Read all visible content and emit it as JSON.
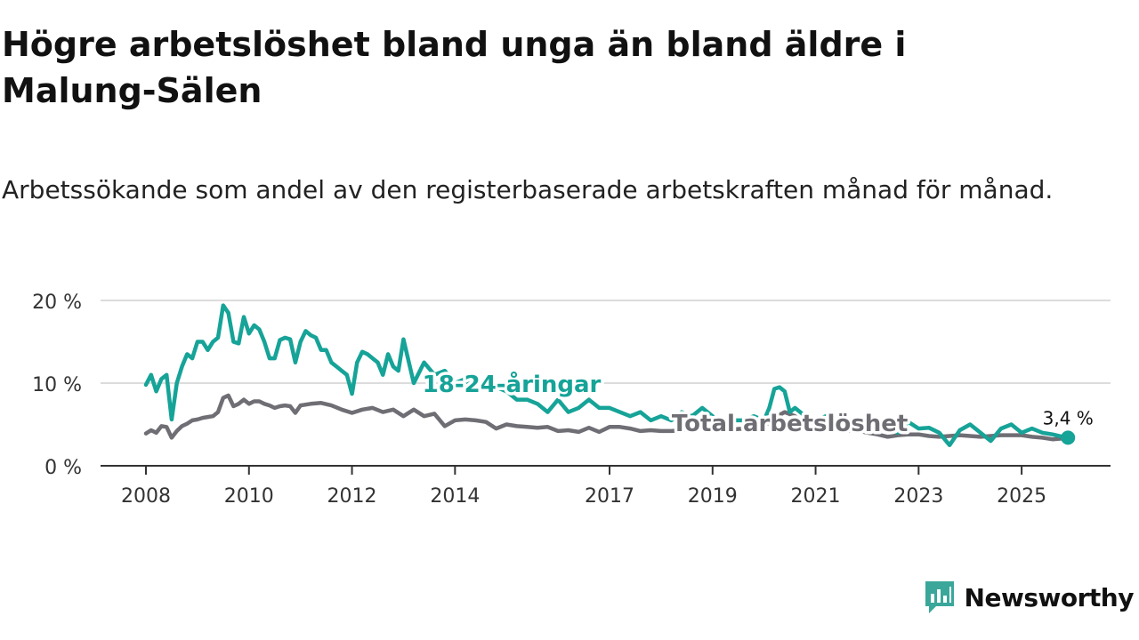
{
  "title": "Högre arbetslöshet bland unga än bland äldre i Malung-Sälen",
  "subtitle": "Arbetssökande som andel av den registerbaserade arbetskraften månad för månad.",
  "brand": {
    "name": "Newsworthy",
    "icon": "newsworthy-logo-icon"
  },
  "colors": {
    "youth": "#16a398",
    "total": "#6f6e74",
    "grid": "#dcdcdc",
    "axis": "#333333",
    "brand": "#3aa79a"
  },
  "chart_data": {
    "type": "line",
    "title": "Högre arbetslöshet bland unga än bland äldre i Malung-Sälen",
    "ylabel": "",
    "xlabel": "",
    "ylim": [
      0,
      20
    ],
    "xlim": [
      2007.6,
      2026.6
    ],
    "yticks": [
      0,
      10,
      20
    ],
    "yticklabels": [
      "0 %",
      "10 %",
      "20 %"
    ],
    "xticks": [
      2008,
      2010,
      2012,
      2014,
      2017,
      2019,
      2021,
      2023,
      2025
    ],
    "xticklabels": [
      "2008",
      "2010",
      "2012",
      "2014",
      "2017",
      "2019",
      "2021",
      "2023",
      "2025"
    ],
    "grid": true,
    "end_label": "3,4 %",
    "series": [
      {
        "name": "18-24-åringar",
        "color": "#16a398",
        "x": [
          2008.0,
          2008.1,
          2008.2,
          2008.3,
          2008.4,
          2008.5,
          2008.6,
          2008.7,
          2008.8,
          2008.9,
          2009.0,
          2009.1,
          2009.2,
          2009.3,
          2009.4,
          2009.5,
          2009.6,
          2009.7,
          2009.8,
          2009.9,
          2010.0,
          2010.1,
          2010.2,
          2010.3,
          2010.4,
          2010.5,
          2010.6,
          2010.7,
          2010.8,
          2010.9,
          2011.0,
          2011.1,
          2011.2,
          2011.3,
          2011.4,
          2011.5,
          2011.6,
          2011.7,
          2011.8,
          2011.9,
          2012.0,
          2012.1,
          2012.2,
          2012.3,
          2012.4,
          2012.5,
          2012.6,
          2012.7,
          2012.8,
          2012.9,
          2013.0,
          2013.2,
          2013.4,
          2013.6,
          2013.8,
          2014.0,
          2014.2,
          2014.4,
          2014.6,
          2014.8,
          2015.0,
          2015.2,
          2015.4,
          2015.6,
          2015.8,
          2016.0,
          2016.2,
          2016.4,
          2016.6,
          2016.8,
          2017.0,
          2017.2,
          2017.4,
          2017.6,
          2017.8,
          2018.0,
          2018.2,
          2018.4,
          2018.6,
          2018.8,
          2019.0,
          2019.2,
          2019.4,
          2019.6,
          2019.8,
          2020.0,
          2020.1,
          2020.2,
          2020.3,
          2020.4,
          2020.5,
          2020.6,
          2020.8,
          2021.0,
          2021.2,
          2021.4,
          2021.6,
          2021.8,
          2022.0,
          2022.2,
          2022.4,
          2022.6,
          2022.8,
          2023.0,
          2023.2,
          2023.4,
          2023.6,
          2023.8,
          2024.0,
          2024.2,
          2024.4,
          2024.6,
          2024.8,
          2025.0,
          2025.2,
          2025.4,
          2025.6,
          2025.8,
          2025.9
        ],
        "values": [
          9.8,
          11.0,
          9.0,
          10.5,
          11.0,
          5.6,
          10.0,
          12.0,
          13.5,
          13.0,
          15.0,
          15.0,
          14.0,
          15.0,
          15.5,
          19.4,
          18.5,
          15.0,
          14.8,
          18.0,
          16.0,
          17.0,
          16.5,
          15.0,
          13.0,
          13.0,
          15.2,
          15.5,
          15.3,
          12.5,
          15.0,
          16.3,
          15.8,
          15.5,
          14.0,
          14.0,
          12.5,
          12.0,
          11.5,
          11.0,
          8.7,
          12.5,
          13.8,
          13.5,
          13.0,
          12.5,
          11.0,
          13.5,
          12.0,
          11.5,
          15.3,
          10.0,
          12.5,
          11.0,
          11.5,
          10.0,
          10.5,
          9.0,
          10.5,
          9.5,
          9.0,
          8.0,
          8.0,
          7.5,
          6.5,
          8.0,
          6.5,
          7.0,
          8.0,
          7.0,
          7.0,
          6.5,
          6.0,
          6.5,
          5.5,
          6.0,
          5.5,
          6.5,
          6.0,
          7.0,
          6.0,
          5.0,
          5.5,
          5.5,
          6.0,
          5.5,
          7.0,
          9.3,
          9.5,
          9.0,
          6.5,
          7.0,
          6.0,
          5.5,
          6.0,
          5.0,
          5.5,
          5.0,
          5.5,
          5.0,
          4.5,
          4.0,
          5.3,
          4.5,
          4.6,
          4.0,
          2.5,
          4.3,
          5.0,
          4.0,
          3.0,
          4.5,
          5.0,
          4.0,
          4.5,
          4.0,
          3.8,
          3.5,
          3.4
        ]
      },
      {
        "name": "Total arbetslöshet",
        "color": "#6f6e74",
        "x": [
          2008.0,
          2008.1,
          2008.2,
          2008.3,
          2008.4,
          2008.5,
          2008.6,
          2008.7,
          2008.8,
          2008.9,
          2009.0,
          2009.1,
          2009.2,
          2009.3,
          2009.4,
          2009.5,
          2009.6,
          2009.7,
          2009.8,
          2009.9,
          2010.0,
          2010.1,
          2010.2,
          2010.3,
          2010.4,
          2010.5,
          2010.6,
          2010.7,
          2010.8,
          2010.9,
          2011.0,
          2011.2,
          2011.4,
          2011.6,
          2011.8,
          2012.0,
          2012.2,
          2012.4,
          2012.6,
          2012.8,
          2013.0,
          2013.2,
          2013.4,
          2013.6,
          2013.8,
          2014.0,
          2014.2,
          2014.4,
          2014.6,
          2014.8,
          2015.0,
          2015.2,
          2015.4,
          2015.6,
          2015.8,
          2016.0,
          2016.2,
          2016.4,
          2016.6,
          2016.8,
          2017.0,
          2017.2,
          2017.4,
          2017.6,
          2017.8,
          2018.0,
          2018.2,
          2018.4,
          2018.6,
          2018.8,
          2019.0,
          2019.2,
          2019.4,
          2019.6,
          2019.8,
          2020.0,
          2020.2,
          2020.4,
          2020.6,
          2020.8,
          2021.0,
          2021.2,
          2021.4,
          2021.6,
          2021.8,
          2022.0,
          2022.2,
          2022.4,
          2022.6,
          2022.8,
          2023.0,
          2023.2,
          2023.4,
          2023.6,
          2023.8,
          2024.0,
          2024.2,
          2024.4,
          2024.6,
          2024.8,
          2025.0,
          2025.2,
          2025.4,
          2025.6,
          2025.8,
          2025.9
        ],
        "values": [
          3.9,
          4.3,
          4.0,
          4.8,
          4.7,
          3.4,
          4.2,
          4.8,
          5.1,
          5.5,
          5.6,
          5.8,
          5.9,
          6.0,
          6.5,
          8.2,
          8.5,
          7.2,
          7.5,
          8.0,
          7.5,
          7.8,
          7.8,
          7.5,
          7.3,
          7.0,
          7.2,
          7.3,
          7.2,
          6.4,
          7.3,
          7.5,
          7.6,
          7.3,
          6.8,
          6.4,
          6.8,
          7.0,
          6.5,
          6.8,
          6.0,
          6.8,
          6.0,
          6.3,
          4.8,
          5.5,
          5.6,
          5.5,
          5.3,
          4.5,
          5.0,
          4.8,
          4.7,
          4.6,
          4.7,
          4.2,
          4.3,
          4.1,
          4.6,
          4.1,
          4.7,
          4.7,
          4.5,
          4.2,
          4.3,
          4.2,
          4.2,
          4.3,
          4.4,
          4.5,
          4.3,
          4.3,
          4.4,
          4.5,
          4.3,
          4.8,
          5.8,
          6.5,
          6.0,
          5.0,
          4.8,
          4.9,
          4.5,
          4.2,
          4.3,
          4.0,
          3.8,
          3.5,
          3.7,
          3.8,
          3.8,
          3.6,
          3.5,
          3.6,
          3.7,
          3.6,
          3.5,
          3.6,
          3.7,
          3.7,
          3.7,
          3.5,
          3.4,
          3.2,
          3.3,
          3.4
        ]
      }
    ],
    "annotations": [
      {
        "text": "18-24-åringar",
        "series": "18-24-åringar",
        "x": 2015.1,
        "y": 8.9
      },
      {
        "text": "Total arbetslöshet",
        "series": "Total arbetslöshet",
        "x": 2020.5,
        "y": 4.2
      }
    ]
  }
}
